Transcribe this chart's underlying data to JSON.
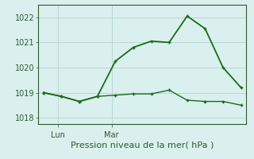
{
  "xlabel": "Pression niveau de la mer( hPa )",
  "line1_x": [
    0,
    1,
    2,
    3,
    4,
    5,
    6,
    7,
    8,
    9,
    10,
    11
  ],
  "line1_y": [
    1019.0,
    1018.85,
    1018.65,
    1018.85,
    1020.25,
    1020.8,
    1021.05,
    1021.0,
    1022.05,
    1021.55,
    1020.0,
    1019.2
  ],
  "line2_x": [
    0,
    1,
    2,
    3,
    4,
    5,
    6,
    7,
    8,
    9,
    10,
    11
  ],
  "line2_y": [
    1019.0,
    1018.85,
    1018.65,
    1018.85,
    1018.9,
    1018.95,
    1018.95,
    1019.1,
    1018.7,
    1018.65,
    1018.65,
    1018.5
  ],
  "line_color": "#1a6b1a",
  "bg_color": "#daf0ee",
  "grid_color": "#b8d8d4",
  "axis_color": "#2d5a2d",
  "text_color": "#2d5a2d",
  "ylim": [
    1017.75,
    1022.5
  ],
  "yticks": [
    1018,
    1019,
    1020,
    1021,
    1022
  ],
  "xlim": [
    -0.3,
    11.3
  ],
  "lun_x": 0.8,
  "mar_x": 3.8,
  "markersize": 3.5,
  "linewidth1": 1.3,
  "linewidth2": 1.0,
  "xlabel_fontsize": 8,
  "ytick_fontsize": 7,
  "xtick_fontsize": 7
}
